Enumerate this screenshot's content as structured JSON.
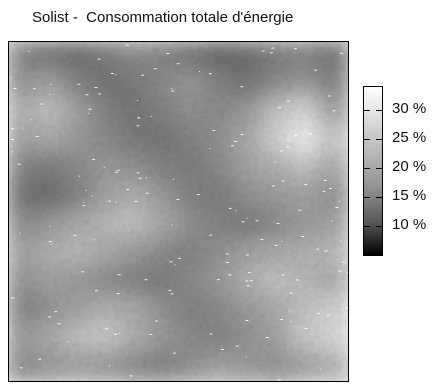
{
  "chart_data": {
    "type": "heatmap",
    "title": "Solist -  Consommation totale d'énergie",
    "colormap": "grayscale",
    "colorbar": {
      "min": 5,
      "max": 34,
      "ticks": [
        {
          "value": 30,
          "label": "30 %"
        },
        {
          "value": 25,
          "label": "25 %"
        },
        {
          "value": 20,
          "label": "20 %"
        },
        {
          "value": 15,
          "label": "15 %"
        },
        {
          "value": 10,
          "label": "10 %"
        }
      ]
    },
    "grid": {
      "rows": 12,
      "cols": 12,
      "values": [
        [
          18,
          16,
          15,
          17,
          19,
          18,
          16,
          14,
          15,
          17,
          18,
          16
        ],
        [
          20,
          22,
          18,
          16,
          17,
          19,
          21,
          18,
          16,
          19,
          21,
          18
        ],
        [
          24,
          26,
          22,
          18,
          16,
          18,
          20,
          19,
          21,
          26,
          29,
          22
        ],
        [
          22,
          23,
          21,
          19,
          17,
          16,
          18,
          20,
          23,
          28,
          32,
          27
        ],
        [
          18,
          17,
          19,
          21,
          20,
          18,
          17,
          19,
          22,
          24,
          26,
          23
        ],
        [
          16,
          15,
          18,
          22,
          24,
          21,
          18,
          17,
          20,
          21,
          22,
          20
        ],
        [
          19,
          21,
          23,
          25,
          26,
          23,
          20,
          18,
          17,
          19,
          21,
          22
        ],
        [
          22,
          24,
          25,
          23,
          21,
          19,
          18,
          20,
          22,
          23,
          24,
          25
        ],
        [
          20,
          22,
          21,
          19,
          18,
          17,
          19,
          21,
          24,
          26,
          25,
          23
        ],
        [
          18,
          20,
          22,
          24,
          23,
          20,
          18,
          19,
          21,
          23,
          26,
          28
        ],
        [
          21,
          23,
          26,
          27,
          24,
          21,
          19,
          18,
          20,
          22,
          27,
          29
        ],
        [
          19,
          21,
          22,
          21,
          19,
          18,
          20,
          22,
          21,
          20,
          22,
          24
        ]
      ]
    }
  }
}
